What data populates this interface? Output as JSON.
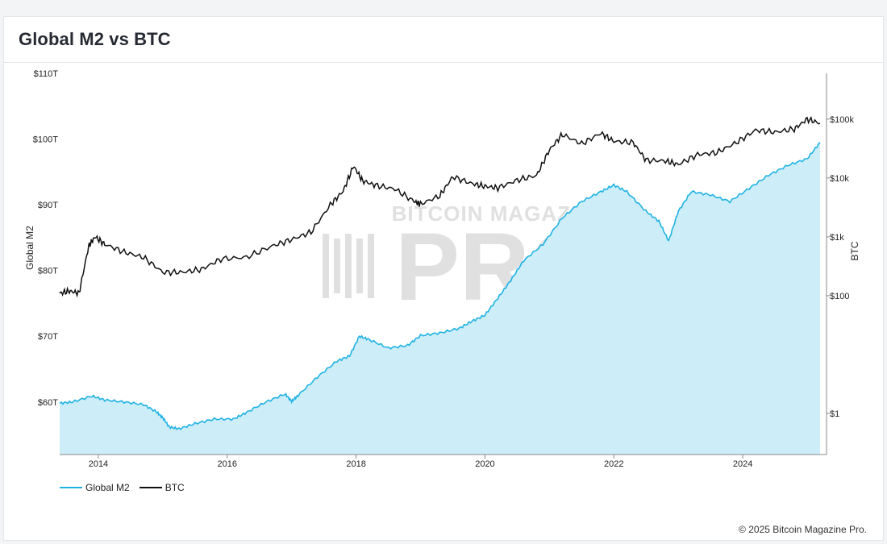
{
  "header": {
    "title": "Global M2 vs BTC"
  },
  "footer": {
    "credit": "© 2025 Bitcoin Magazine Pro."
  },
  "watermark": {
    "line1": "BITCOIN MAGAZINE",
    "line2": "PRO",
    "mark": "®"
  },
  "colors": {
    "m2_line": "#1fb2e3",
    "m2_fill": "#cdeef9",
    "btc_line": "#111111",
    "axis": "#888888",
    "text": "#222222",
    "watermark": "#e0e0e0"
  },
  "chart_data": {
    "type": "line",
    "title": "Global M2 vs BTC",
    "xlabel": "",
    "ylabel": "Global M2",
    "y2label": "BTC",
    "x_ticks": [
      "2014",
      "2016",
      "2018",
      "2020",
      "2022",
      "2024"
    ],
    "y_ticks": [
      "$60T",
      "$70T",
      "$80T",
      "$90T",
      "$100T",
      "$110T"
    ],
    "y2_ticks": [
      "$1",
      "$100",
      "$1k",
      "$10k",
      "$100k"
    ],
    "xlim": [
      2013.4,
      2025.3
    ],
    "ylim": [
      52,
      110
    ],
    "y2_scale": "log",
    "y2lim": [
      0.2,
      600000
    ],
    "legend_placement": "bottom-left",
    "grid": false,
    "series": [
      {
        "name": "Global M2",
        "axis": "left",
        "style": "area",
        "x": [
          2013.4,
          2013.6,
          2013.9,
          2014.1,
          2014.4,
          2014.7,
          2014.9,
          2015.0,
          2015.1,
          2015.25,
          2015.5,
          2015.8,
          2016.1,
          2016.3,
          2016.6,
          2016.9,
          2017.0,
          2017.1,
          2017.4,
          2017.7,
          2017.9,
          2018.05,
          2018.2,
          2018.5,
          2018.8,
          2019.0,
          2019.3,
          2019.6,
          2019.8,
          2020.0,
          2020.2,
          2020.4,
          2020.6,
          2020.9,
          2021.2,
          2021.5,
          2021.8,
          2022.0,
          2022.2,
          2022.5,
          2022.7,
          2022.85,
          2023.0,
          2023.2,
          2023.5,
          2023.8,
          2024.1,
          2024.4,
          2024.7,
          2025.0,
          2025.2
        ],
        "y": [
          59.8,
          60.0,
          60.9,
          60.3,
          60.0,
          59.6,
          58.5,
          57.6,
          56.2,
          55.9,
          56.7,
          57.4,
          57.4,
          58.4,
          60.0,
          61.2,
          60.1,
          61.0,
          63.8,
          66.2,
          67.0,
          70.0,
          69.5,
          68.2,
          68.6,
          70.1,
          70.5,
          71.2,
          72.3,
          73.2,
          75.8,
          78.5,
          81.5,
          84.0,
          88.0,
          90.5,
          92.0,
          93.0,
          92.0,
          89.0,
          87.5,
          84.5,
          89.0,
          92.0,
          91.5,
          90.5,
          92.5,
          94.5,
          96.0,
          97.0,
          99.5
        ]
      },
      {
        "name": "BTC",
        "axis": "right",
        "style": "line",
        "x": [
          2013.4,
          2013.55,
          2013.7,
          2013.85,
          2013.95,
          2014.1,
          2014.4,
          2014.7,
          2015.0,
          2015.3,
          2015.6,
          2015.9,
          2016.3,
          2016.7,
          2017.0,
          2017.3,
          2017.6,
          2017.8,
          2017.96,
          2018.1,
          2018.3,
          2018.6,
          2018.9,
          2019.0,
          2019.3,
          2019.5,
          2019.8,
          2020.0,
          2020.2,
          2020.5,
          2020.8,
          2021.0,
          2021.2,
          2021.5,
          2021.8,
          2022.0,
          2022.3,
          2022.5,
          2022.8,
          2023.0,
          2023.3,
          2023.6,
          2023.9,
          2024.2,
          2024.5,
          2024.8,
          2025.0,
          2025.2
        ],
        "y": [
          110,
          120,
          110,
          700,
          1000,
          750,
          550,
          450,
          250,
          250,
          280,
          420,
          450,
          700,
          900,
          1200,
          3500,
          6000,
          16000,
          9000,
          7500,
          6500,
          4000,
          3600,
          5000,
          10500,
          8000,
          7200,
          6800,
          9200,
          11000,
          30000,
          55000,
          38000,
          58000,
          42000,
          40000,
          20000,
          19500,
          17000,
          25000,
          27000,
          40000,
          65000,
          60000,
          68000,
          100000,
          85000
        ]
      }
    ]
  }
}
